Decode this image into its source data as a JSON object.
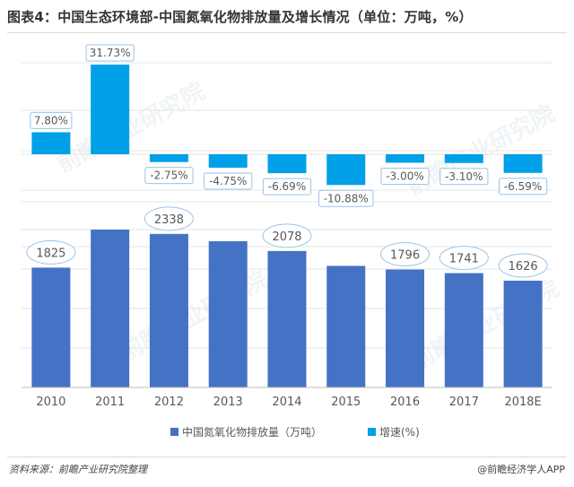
{
  "title": "图表4：中国生态环境部-中国氮氧化物排放量及增长情况（单位：万吨，%）",
  "source": "资料来源：前瞻产业研究院整理",
  "credit": "@前瞻经济学人APP",
  "watermark": "前瞻产业研究院",
  "colors": {
    "bar": "#4472c4",
    "growth": "#00a0e9",
    "label_border": "#9dc3e6",
    "axis": "#bfbfbf",
    "grid": "#e6e6e6",
    "text": "#595959"
  },
  "chart_data": {
    "type": "bar",
    "categories": [
      "2010",
      "2011",
      "2012",
      "2013",
      "2014",
      "2015",
      "2016",
      "2017",
      "2018E"
    ],
    "series": [
      {
        "name": "中国氮氧化物排放量（万吨）",
        "values": [
          1825,
          2404,
          2338,
          2227,
          2078,
          1851,
          1796,
          1741,
          1626
        ],
        "labels": [
          "1825",
          null,
          "2338",
          null,
          "2078",
          null,
          "1796",
          "1741",
          "1626"
        ]
      },
      {
        "name": "增速(%)",
        "values": [
          7.8,
          31.73,
          -2.75,
          -4.75,
          -6.69,
          -10.88,
          -3.0,
          -3.1,
          -6.59
        ],
        "labels": [
          "7.80%",
          "31.73%",
          "-2.75%",
          "-4.75%",
          "-6.69%",
          "-10.88%",
          "-3.00%",
          "-3.10%",
          "-6.59%"
        ]
      }
    ],
    "ylim_volume": [
      0,
      2600
    ],
    "ylim_growth": [
      -16,
      36
    ],
    "legend": "bottom-center",
    "grid": true
  }
}
